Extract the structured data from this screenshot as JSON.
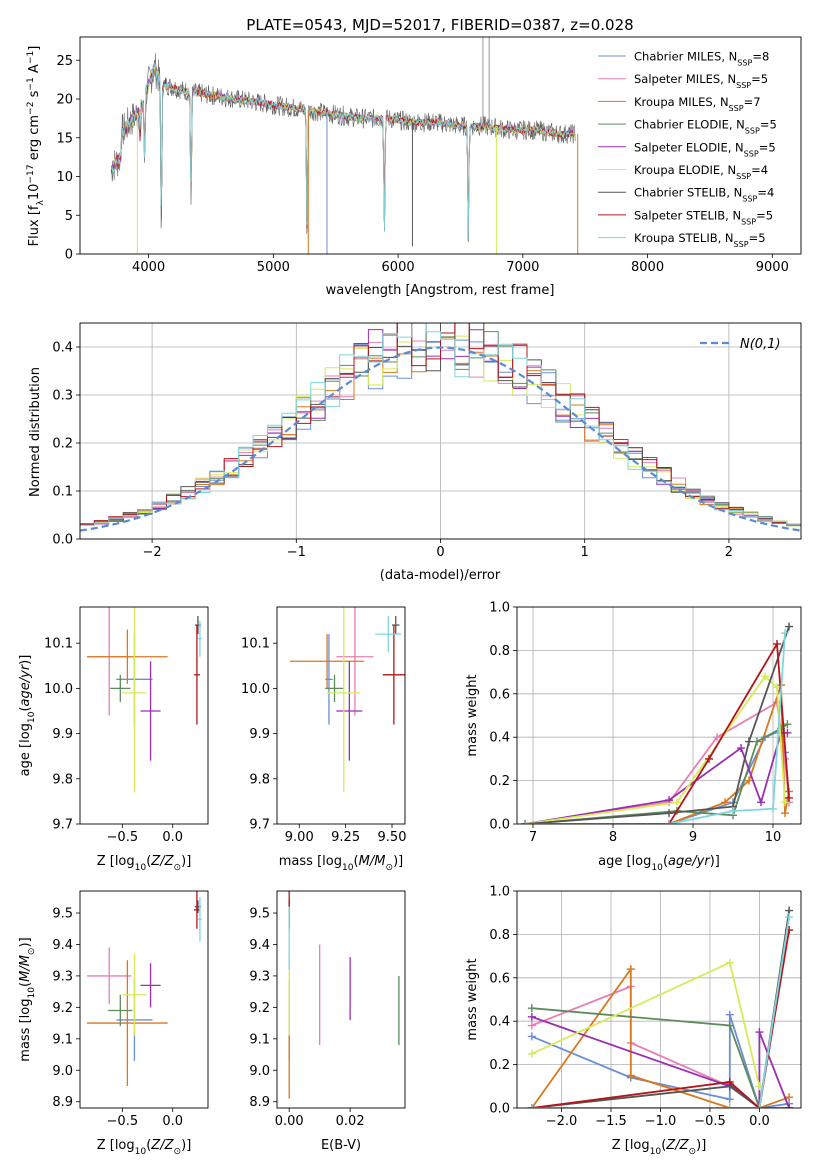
{
  "figure": {
    "title": "PLATE=0543, MJD=52017, FIBERID=0387, z=0.028"
  },
  "series": [
    {
      "name": "Chabrier MILES, N_SSP=8",
      "color": "#6a8fd6"
    },
    {
      "name": "Salpeter MILES, N_SSP=5",
      "color": "#e77fb4"
    },
    {
      "name": "Kroupa MILES, N_SSP=7",
      "color": "#d9781f"
    },
    {
      "name": "Chabrier ELODIE, N_SSP=5",
      "color": "#5c8c5c"
    },
    {
      "name": "Salpeter ELODIE, N_SSP=5",
      "color": "#9a2fb0"
    },
    {
      "name": "Kroupa ELODIE, N_SSP=4",
      "color": "#d6ea5a"
    },
    {
      "name": "Chabrier STELIB, N_SSP=4",
      "color": "#555555"
    },
    {
      "name": "Salpeter STELIB, N_SSP=5",
      "color": "#b3161a"
    },
    {
      "name": "Kroupa STELIB, N_SSP=5",
      "color": "#7fd6de"
    }
  ],
  "chart_data": [
    {
      "id": "spectrum",
      "type": "line",
      "xlabel": "wavelength [Angstrom, rest frame]",
      "ylabel": "Flux [f_λ 10^-17 erg cm^-2 s^-1 A^-1]",
      "xlim": [
        3450,
        9230
      ],
      "ylim": [
        0,
        28
      ],
      "xticks": [
        4000,
        5000,
        6000,
        7000,
        8000,
        9000
      ],
      "yticks": [
        0,
        5,
        10,
        15,
        20,
        25
      ],
      "grid": false,
      "legend": "top-right",
      "data_envelope": {
        "x": [
          3700,
          3750,
          3850,
          3950,
          4000,
          4050,
          4100,
          4200,
          4300,
          4500,
          4700,
          4900,
          5100,
          5300,
          5500,
          5700,
          5900,
          6100,
          6300,
          6500,
          6700,
          6900,
          7100,
          7300,
          7400
        ],
        "y": [
          14,
          15,
          17,
          19,
          22,
          24,
          22,
          21.5,
          21,
          20.5,
          20,
          19.5,
          19,
          18.5,
          18,
          17.5,
          17.5,
          17,
          17,
          16.5,
          16.5,
          16,
          16,
          15.5,
          15.5
        ]
      },
      "absorption_lines": [
        {
          "x": 3933,
          "depth": 0.2
        },
        {
          "x": 3968,
          "depth": 0.4
        },
        {
          "x": 4102,
          "depth": 0.9
        },
        {
          "x": 4340,
          "depth": 0.7
        },
        {
          "x": 5270,
          "depth": 0.9
        },
        {
          "x": 5890,
          "depth": 0.85
        },
        {
          "x": 6563,
          "depth": 0.9
        }
      ],
      "spikes": [
        {
          "x": 3910,
          "y_min": 0
        },
        {
          "x": 5280,
          "y_min": 0
        },
        {
          "x": 5430,
          "y_min": 0
        },
        {
          "x": 6115,
          "y_min": 1
        },
        {
          "x": 6790,
          "y_min": 0
        },
        {
          "x": 7440,
          "y_min": 0
        }
      ],
      "emission_spikes": [
        {
          "x": 6680,
          "y_max": 28
        },
        {
          "x": 6730,
          "y_max": 28
        }
      ]
    },
    {
      "id": "residual_histogram",
      "type": "step",
      "xlabel": "(data-model)/error",
      "ylabel": "Normed distribution",
      "xlim": [
        -2.5,
        2.5
      ],
      "ylim": [
        0,
        0.45
      ],
      "xticks": [
        -2,
        -1,
        0,
        1,
        2
      ],
      "yticks": [
        0,
        0.1,
        0.2,
        0.3,
        0.4
      ],
      "grid": true,
      "legend": "top-right",
      "reference": {
        "name": "N(0,1)",
        "color": "#5b8bd4",
        "style": "dashed"
      },
      "bins": {
        "start": -2.5,
        "width": 0.1,
        "count": 50
      }
    },
    {
      "id": "age_vs_Z",
      "type": "errorbar",
      "xlabel": "Z [log10(Z/Z_sun)]",
      "ylabel": "age [log10(age/yr)]",
      "xlim": [
        -0.92,
        0.35
      ],
      "ylim": [
        9.7,
        10.18
      ],
      "xticks": [
        -0.5,
        0.0
      ],
      "yticks": [
        9.7,
        9.8,
        9.9,
        10.0,
        10.1
      ],
      "points": [
        {
          "series": 0,
          "x": -0.38,
          "xerr": 0.18,
          "y": 10.02,
          "yerr": 0.1
        },
        {
          "series": 1,
          "x": -0.63,
          "xerr": 0.22,
          "y": 10.07,
          "yerr": 0.13
        },
        {
          "series": 2,
          "x": -0.45,
          "xerr": 0.4,
          "y": 10.07,
          "yerr": 0.06
        },
        {
          "series": 3,
          "x": -0.52,
          "xerr": 0.1,
          "y": 10.0,
          "yerr": 0.03
        },
        {
          "series": 4,
          "x": -0.22,
          "xerr": 0.1,
          "y": 9.95,
          "yerr": 0.11
        },
        {
          "series": 5,
          "x": -0.38,
          "xerr": 0.12,
          "y": 9.99,
          "yerr": 0.22
        },
        {
          "series": 6,
          "x": 0.25,
          "xerr": 0.03,
          "y": 10.14,
          "yerr": 0.02
        },
        {
          "series": 7,
          "x": 0.24,
          "xerr": 0.03,
          "y": 10.03,
          "yerr": 0.11
        },
        {
          "series": 8,
          "x": 0.27,
          "xerr": 0.02,
          "y": 10.11,
          "yerr": 0.04
        }
      ]
    },
    {
      "id": "age_vs_mass",
      "type": "errorbar",
      "xlabel": "mass [log10(M/M_sun)]",
      "ylabel": "",
      "xlim": [
        8.88,
        9.57
      ],
      "ylim": [
        9.7,
        10.18
      ],
      "xticks": [
        9.0,
        9.25,
        9.5
      ],
      "yticks": [
        9.7,
        9.8,
        9.9,
        10.0,
        10.1
      ],
      "points": [
        {
          "series": 0,
          "x": 9.16,
          "xerr": 0.02,
          "y": 10.02,
          "yerr": 0.1
        },
        {
          "series": 1,
          "x": 9.3,
          "xerr": 0.1,
          "y": 10.07,
          "yerr": 0.13
        },
        {
          "series": 2,
          "x": 9.15,
          "xerr": 0.2,
          "y": 10.06,
          "yerr": 0.06
        },
        {
          "series": 3,
          "x": 9.19,
          "xerr": 0.05,
          "y": 10.0,
          "yerr": 0.03
        },
        {
          "series": 4,
          "x": 9.27,
          "xerr": 0.07,
          "y": 9.95,
          "yerr": 0.11
        },
        {
          "series": 5,
          "x": 9.24,
          "xerr": 0.09,
          "y": 9.99,
          "yerr": 0.22
        },
        {
          "series": 6,
          "x": 9.52,
          "xerr": 0.02,
          "y": 10.14,
          "yerr": 0.02
        },
        {
          "series": 7,
          "x": 9.51,
          "xerr": 0.06,
          "y": 10.03,
          "yerr": 0.11
        },
        {
          "series": 8,
          "x": 9.48,
          "xerr": 0.07,
          "y": 10.12,
          "yerr": 0.04
        }
      ]
    },
    {
      "id": "mass_weight_vs_age",
      "type": "line",
      "xlabel": "age [log10(age/yr)]",
      "ylabel": "mass weight",
      "xlim": [
        6.8,
        10.35
      ],
      "ylim": [
        0,
        1.0
      ],
      "xticks": [
        7,
        8,
        9,
        10
      ],
      "yticks": [
        0.0,
        0.2,
        0.4,
        0.6,
        0.8,
        1.0
      ],
      "grid": true,
      "series": [
        {
          "series": 0,
          "x": [
            6.9,
            8.7,
            9.5,
            9.9,
            10.1,
            10.15
          ],
          "y": [
            0.0,
            0.0,
            0.1,
            0.4,
            0.43,
            0.33
          ]
        },
        {
          "series": 1,
          "x": [
            6.9,
            8.7,
            9.3,
            10.05,
            10.15,
            10.2
          ],
          "y": [
            0.0,
            0.1,
            0.4,
            0.56,
            0.3,
            0.1
          ]
        },
        {
          "series": 2,
          "x": [
            6.9,
            8.7,
            9.4,
            9.7,
            10.1,
            10.15,
            10.2
          ],
          "y": [
            0.0,
            0.0,
            0.1,
            0.2,
            0.64,
            0.05,
            0.15
          ]
        },
        {
          "series": 3,
          "x": [
            6.9,
            8.8,
            9.5,
            9.8,
            10.1,
            10.18
          ],
          "y": [
            0.0,
            0.06,
            0.04,
            0.38,
            0.44,
            0.46
          ]
        },
        {
          "series": 4,
          "x": [
            6.9,
            8.7,
            9.6,
            9.85,
            10.1,
            10.18
          ],
          "y": [
            0.0,
            0.11,
            0.35,
            0.1,
            0.42,
            0.42
          ]
        },
        {
          "series": 5,
          "x": [
            6.9,
            8.8,
            9.9,
            10.05,
            10.15
          ],
          "y": [
            0.0,
            0.1,
            0.68,
            0.63,
            0.1
          ]
        },
        {
          "series": 6,
          "x": [
            6.9,
            8.7,
            9.5,
            9.7,
            10.2
          ],
          "y": [
            0.0,
            0.05,
            0.08,
            0.38,
            0.91
          ]
        },
        {
          "series": 7,
          "x": [
            6.9,
            8.7,
            9.2,
            10.05,
            10.2
          ],
          "y": [
            0.0,
            0.0,
            0.3,
            0.83,
            0.12
          ]
        },
        {
          "series": 8,
          "x": [
            6.9,
            8.7,
            9.5,
            10.0,
            10.15
          ],
          "y": [
            0.0,
            0.0,
            0.06,
            0.07,
            0.88
          ]
        }
      ]
    },
    {
      "id": "mass_vs_Z",
      "type": "errorbar",
      "xlabel": "Z [log10(Z/Z_sun)]",
      "ylabel": "mass [log10(M/M_sun)]",
      "xlim": [
        -0.92,
        0.35
      ],
      "ylim": [
        8.88,
        9.57
      ],
      "xticks": [
        -0.5,
        0.0
      ],
      "yticks": [
        8.9,
        9.0,
        9.1,
        9.2,
        9.3,
        9.4,
        9.5
      ],
      "points": [
        {
          "series": 0,
          "x": -0.38,
          "xerr": 0.18,
          "y": 9.16,
          "yerr": 0.13
        },
        {
          "series": 1,
          "x": -0.63,
          "xerr": 0.22,
          "y": 9.3,
          "yerr": 0.09
        },
        {
          "series": 2,
          "x": -0.45,
          "xerr": 0.4,
          "y": 9.15,
          "yerr": 0.2
        },
        {
          "series": 3,
          "x": -0.52,
          "xerr": 0.12,
          "y": 9.19,
          "yerr": 0.05
        },
        {
          "series": 4,
          "x": -0.22,
          "xerr": 0.1,
          "y": 9.27,
          "yerr": 0.07
        },
        {
          "series": 5,
          "x": -0.38,
          "xerr": 0.12,
          "y": 9.24,
          "yerr": 0.13
        },
        {
          "series": 6,
          "x": 0.25,
          "xerr": 0.03,
          "y": 9.52,
          "yerr": 0.02
        },
        {
          "series": 7,
          "x": 0.24,
          "xerr": 0.03,
          "y": 9.51,
          "yerr": 0.06
        },
        {
          "series": 8,
          "x": 0.27,
          "xerr": 0.02,
          "y": 9.48,
          "yerr": 0.07
        }
      ]
    },
    {
      "id": "mass_vs_EBV",
      "type": "errorbar",
      "xlabel": "E(B-V)",
      "ylabel": "",
      "xlim": [
        -0.004,
        0.038
      ],
      "ylim": [
        8.88,
        9.57
      ],
      "xticks": [
        0.0,
        0.02
      ],
      "yticks": [
        8.9,
        9.0,
        9.1,
        9.2,
        9.3,
        9.4,
        9.5
      ],
      "points": [
        {
          "series": 0,
          "x": 0.0,
          "y": 9.16,
          "yerr": 0.13
        },
        {
          "series": 1,
          "x": 0.01,
          "y": 9.24,
          "yerr": 0.16
        },
        {
          "series": 2,
          "x": 0.0,
          "y": 9.01,
          "yerr": 0.1
        },
        {
          "series": 3,
          "x": 0.036,
          "y": 9.19,
          "yerr": 0.11
        },
        {
          "series": 4,
          "x": 0.02,
          "y": 9.26,
          "yerr": 0.1
        },
        {
          "series": 5,
          "x": 0.0,
          "y": 9.24,
          "yerr": 0.13
        },
        {
          "series": 6,
          "x": 0.0,
          "y": 9.52,
          "yerr": 0.02
        },
        {
          "series": 7,
          "x": 0.0,
          "y": 9.51,
          "yerr": 0.06
        },
        {
          "series": 8,
          "x": 0.0,
          "y": 9.42,
          "yerr": 0.1
        }
      ]
    },
    {
      "id": "mass_weight_vs_Z",
      "type": "line",
      "xlabel": "Z [log10(Z/Z_sun)]",
      "ylabel": "mass weight",
      "xlim": [
        -2.45,
        0.42
      ],
      "ylim": [
        0,
        1.0
      ],
      "xticks": [
        -2.0,
        -1.5,
        -1.0,
        -0.5,
        0.0
      ],
      "yticks": [
        0.0,
        0.2,
        0.4,
        0.6,
        0.8,
        1.0
      ],
      "grid": true,
      "series": [
        {
          "series": 0,
          "x": [
            -2.3,
            -1.3,
            -0.3,
            -0.3,
            0.0,
            0.3
          ],
          "y": [
            0.33,
            0.14,
            0.04,
            0.43,
            0.0,
            0.02
          ]
        },
        {
          "series": 1,
          "x": [
            -2.3,
            -1.3,
            -1.3,
            -0.3,
            0.0
          ],
          "y": [
            0.38,
            0.56,
            0.3,
            0.1,
            0.0
          ]
        },
        {
          "series": 2,
          "x": [
            -2.3,
            -1.3,
            -1.3,
            -0.3,
            0.0,
            0.3
          ],
          "y": [
            0.0,
            0.64,
            0.15,
            0.0,
            0.0,
            0.05
          ]
        },
        {
          "series": 3,
          "x": [
            -2.3,
            -0.3,
            0.0,
            0.3
          ],
          "y": [
            0.46,
            0.38,
            0.0,
            0.0
          ]
        },
        {
          "series": 4,
          "x": [
            -2.3,
            -0.3,
            -0.3,
            0.0,
            0.0,
            0.3
          ],
          "y": [
            0.42,
            0.1,
            0.11,
            0.0,
            0.35,
            0.0
          ]
        },
        {
          "series": 5,
          "x": [
            -2.3,
            -0.3,
            0.0
          ],
          "y": [
            0.25,
            0.67,
            0.1
          ]
        },
        {
          "series": 6,
          "x": [
            -2.3,
            -0.3,
            0.0,
            0.3
          ],
          "y": [
            0.0,
            0.1,
            0.0,
            0.91
          ]
        },
        {
          "series": 7,
          "x": [
            -2.3,
            -0.3,
            0.0,
            0.3
          ],
          "y": [
            0.0,
            0.12,
            0.0,
            0.82
          ]
        },
        {
          "series": 8,
          "x": [
            -2.3,
            -0.3,
            0.0,
            0.3
          ],
          "y": [
            0.0,
            0.0,
            0.0,
            0.88
          ]
        }
      ]
    }
  ]
}
